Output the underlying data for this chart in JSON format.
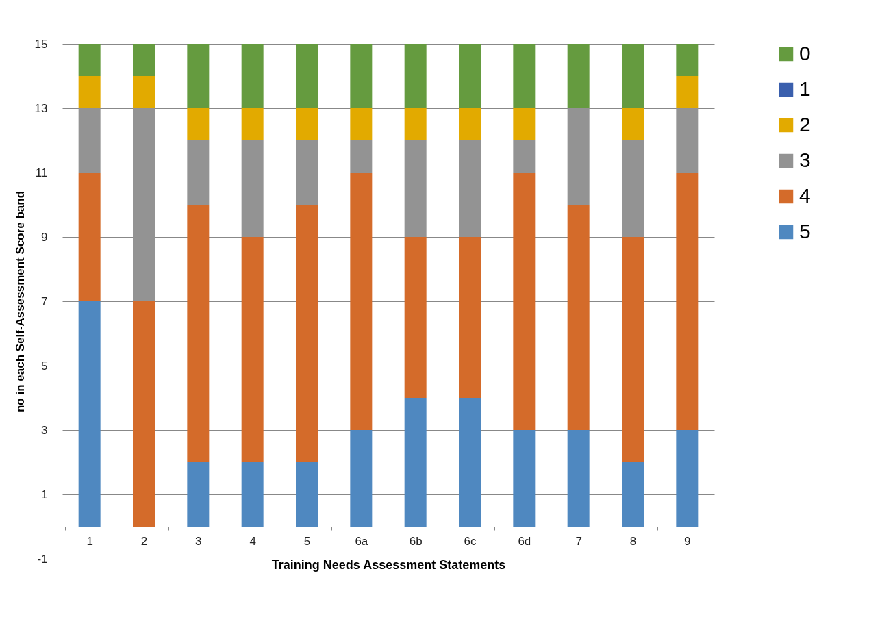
{
  "chart_data": {
    "type": "bar",
    "stacked": true,
    "xlabel": "Training Needs Assessment Statements",
    "ylabel": "no in each Self-Assessment Score band",
    "categories": [
      "1",
      "2",
      "3",
      "4",
      "5",
      "6a",
      "6b",
      "6c",
      "6d",
      "7",
      "8",
      "9"
    ],
    "series": [
      {
        "name": "5",
        "color": "#4f88c0",
        "values": [
          7,
          0,
          2,
          2,
          2,
          3,
          4,
          4,
          3,
          3,
          2,
          3
        ]
      },
      {
        "name": "4",
        "color": "#d46b2a",
        "values": [
          4,
          7,
          8,
          7,
          8,
          8,
          5,
          5,
          8,
          7,
          7,
          8
        ]
      },
      {
        "name": "3",
        "color": "#939393",
        "values": [
          2,
          6,
          2,
          3,
          2,
          1,
          3,
          3,
          1,
          3,
          3,
          2
        ]
      },
      {
        "name": "2",
        "color": "#e2aa00",
        "values": [
          1,
          1,
          1,
          1,
          1,
          1,
          1,
          1,
          1,
          0,
          1,
          1
        ]
      },
      {
        "name": "1",
        "color": "#3a5fad",
        "values": [
          0,
          0,
          0,
          0,
          0,
          0,
          0,
          0,
          0,
          0,
          0,
          0
        ]
      },
      {
        "name": "0",
        "color": "#659b3f",
        "values": [
          1,
          1,
          2,
          2,
          2,
          2,
          2,
          2,
          2,
          2,
          2,
          1
        ]
      }
    ],
    "ylim": [
      -1,
      15
    ],
    "yticks": [
      -1,
      1,
      3,
      5,
      7,
      9,
      11,
      13,
      15
    ],
    "grid": "y",
    "legend": "right"
  }
}
